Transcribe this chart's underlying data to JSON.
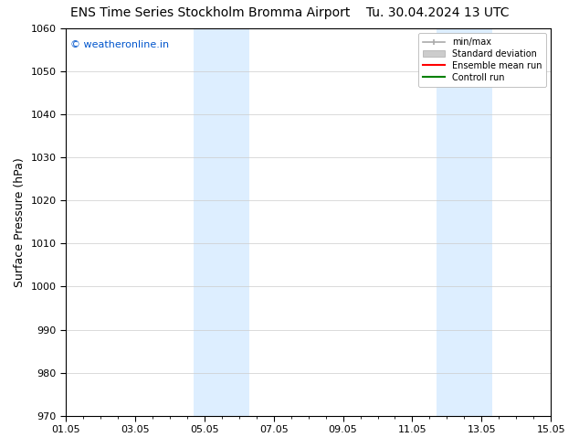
{
  "title_left": "ENS Time Series Stockholm Bromma Airport",
  "title_right": "Tu. 30.04.2024 13 UTC",
  "ylabel": "Surface Pressure (hPa)",
  "ylim": [
    970,
    1060
  ],
  "yticks": [
    970,
    980,
    990,
    1000,
    1010,
    1020,
    1030,
    1040,
    1050,
    1060
  ],
  "xlim_start": 0,
  "xlim_end": 14,
  "xtick_labels": [
    "01.05",
    "03.05",
    "05.05",
    "07.05",
    "09.05",
    "11.05",
    "13.05",
    "15.05"
  ],
  "xtick_positions": [
    0,
    2,
    4,
    6,
    8,
    10,
    12,
    14
  ],
  "shaded_bands": [
    {
      "x_start": 3.7,
      "x_end": 5.3
    },
    {
      "x_start": 10.7,
      "x_end": 12.3
    }
  ],
  "shaded_color": "#ddeeff",
  "watermark_text": "© weatheronline.in",
  "watermark_color": "#0055cc",
  "bg_color": "#ffffff",
  "plot_bg_color": "#ffffff",
  "title_fontsize": 10,
  "ylabel_fontsize": 9,
  "tick_fontsize": 8,
  "legend_labels": [
    "min/max",
    "Standard deviation",
    "Ensemble mean run",
    "Controll run"
  ],
  "legend_colors_line": [
    "#aaaaaa",
    "#cccccc",
    "#ff0000",
    "#008000"
  ]
}
